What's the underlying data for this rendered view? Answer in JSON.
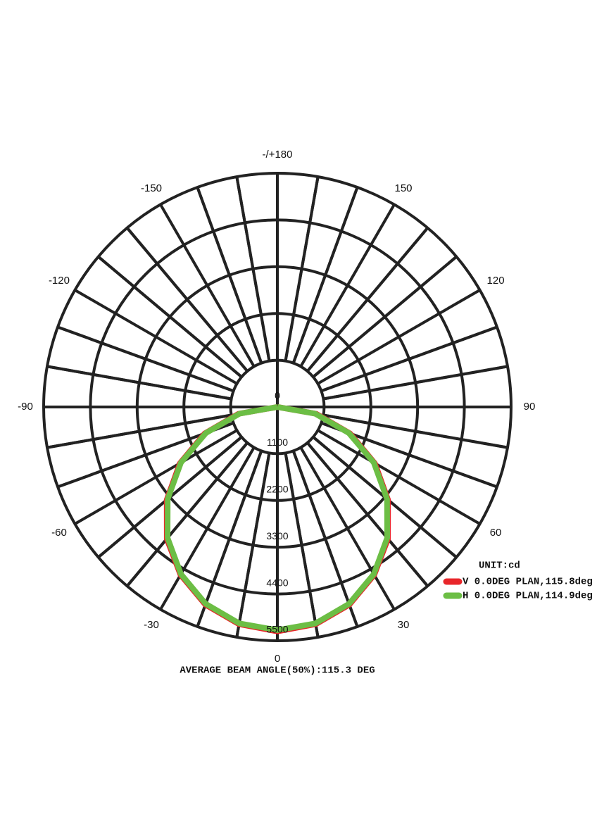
{
  "chart_data": {
    "type": "polar",
    "x": [
      -90,
      -80,
      -70,
      -60,
      -50,
      -40,
      -30,
      -20,
      -10,
      0,
      10,
      20,
      30,
      40,
      50,
      60,
      70,
      80,
      90
    ],
    "series": [
      {
        "name": "V 0.0DEG PLAN,115.8deg",
        "color": "#e8262a",
        "values": [
          0,
          930,
          1820,
          2650,
          3400,
          4050,
          4560,
          4950,
          5190,
          5280,
          5190,
          4950,
          4560,
          4050,
          3400,
          2650,
          1820,
          930,
          0
        ]
      },
      {
        "name": "H 0.0DEG PLAN,114.9deg",
        "color": "#6cbe45",
        "values": [
          0,
          900,
          1790,
          2620,
          3370,
          4020,
          4540,
          4930,
          5170,
          5250,
          5170,
          4930,
          4540,
          4020,
          3370,
          2620,
          1790,
          900,
          0
        ]
      }
    ],
    "rlim": [
      0,
      5500
    ],
    "rticks": [
      0,
      1100,
      2200,
      3300,
      4400,
      5500
    ],
    "xticks": [
      -150,
      -120,
      -90,
      -60,
      -30,
      0,
      30,
      60,
      90,
      120,
      150,
      {
        "value": 180,
        "label": "-/+180"
      }
    ],
    "legend_title": "UNIT:cd",
    "footer": "AVERAGE BEAM ANGLE(50%):115.3 DEG",
    "grid": true
  }
}
